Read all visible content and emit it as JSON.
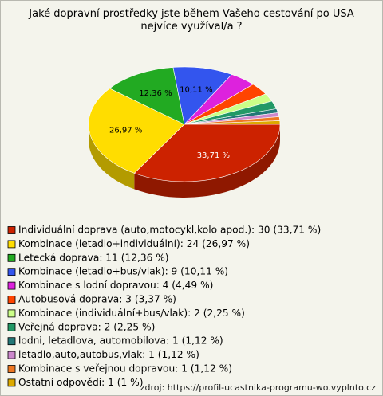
{
  "chart_data": {
    "type": "pie",
    "title": "Jaké dopravní prostředky jste během Vašeho cestování po USA nejvíce využíval/a ?",
    "categories": [
      "Individuální doprava (auto,motocykl,kolo apod.): 30 (33,71 %)",
      "Kombinace (letadlo+individuální): 24 (26,97 %)",
      "Letecká doprava: 11 (12,36 %)",
      "Kombinace (letadlo+bus/vlak): 9 (10,11 %)",
      "Kombinace s lodní dopravou: 4 (4,49 %)",
      "Autobusová doprava: 3 (3,37 %)",
      "Kombinace (individuální+bus/vlak): 2 (2,25 %)",
      "Veřejná doprava: 2 (2,25 %)",
      "lodni, letadlova, automobilova: 1 (1,12 %)",
      "letadlo,auto,autobus,vlak: 1 (1,12 %)",
      "Kombinace s veřejnou dopravou: 1 (1,12 %)",
      "Ostatní odpovědi: 1 (1 %)"
    ],
    "values": [
      33.71,
      26.97,
      12.36,
      10.11,
      4.49,
      3.37,
      2.25,
      2.25,
      1.12,
      1.12,
      1.12,
      1
    ],
    "value_labels": [
      "33,71 %",
      "26,97 %",
      "12,36 %",
      "10,11 %",
      null,
      null,
      null,
      null,
      null,
      null,
      null,
      null
    ],
    "colors": [
      "#cc2200",
      "#ffdd00",
      "#22aa22",
      "#3355ee",
      "#dd22dd",
      "#ff4400",
      "#ccff88",
      "#229966",
      "#227777",
      "#cc88cc",
      "#ee7722",
      "#ddaa00"
    ],
    "source": "zdroj: https://profil-ucastnika-programu-wo.vyplnto.cz"
  }
}
